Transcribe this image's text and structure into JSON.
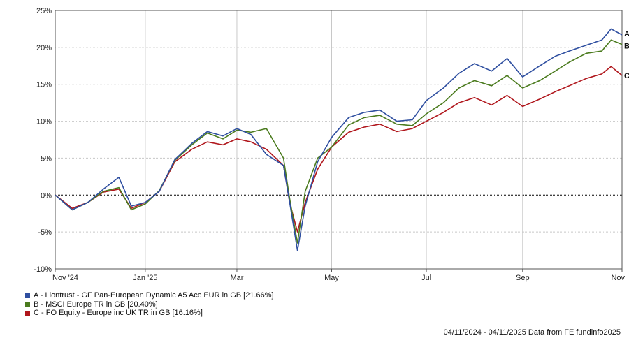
{
  "chart_data": {
    "type": "line",
    "ylim": [
      -10,
      25
    ],
    "y_ticks": [
      -10,
      -5,
      0,
      5,
      10,
      15,
      20,
      25
    ],
    "y_tick_labels": [
      "-10%",
      "-5%",
      "0%",
      "5%",
      "10%",
      "15%",
      "20%",
      "25%"
    ],
    "x_tick_labels": [
      "Nov '24",
      "Jan '25",
      "Mar",
      "May",
      "Jul",
      "Sep",
      "Nov"
    ],
    "x_tick_dates": [
      "2024-11-04",
      "2025-01-01",
      "2025-03-01",
      "2025-05-01",
      "2025-07-01",
      "2025-09-01",
      "2025-11-04"
    ],
    "grid": true,
    "zero_line": true,
    "x_start": "2024-11-04",
    "x_end": "2025-11-04",
    "series": [
      {
        "name": "A - Liontrust - GF Pan-European Dynamic A5 Acc EUR in GB [21.66%]",
        "end_label": "A",
        "color": "#2f4fa0",
        "x": [
          "2024-11-04",
          "2024-11-15",
          "2024-11-25",
          "2024-12-05",
          "2024-12-15",
          "2024-12-23",
          "2025-01-01",
          "2025-01-10",
          "2025-01-20",
          "2025-01-31",
          "2025-02-10",
          "2025-02-20",
          "2025-03-01",
          "2025-03-10",
          "2025-03-20",
          "2025-03-31",
          "2025-04-04",
          "2025-04-09",
          "2025-04-14",
          "2025-04-22",
          "2025-05-01",
          "2025-05-12",
          "2025-05-22",
          "2025-06-01",
          "2025-06-12",
          "2025-06-22",
          "2025-07-01",
          "2025-07-12",
          "2025-07-22",
          "2025-08-01",
          "2025-08-12",
          "2025-08-22",
          "2025-09-01",
          "2025-09-12",
          "2025-09-22",
          "2025-10-01",
          "2025-10-12",
          "2025-10-22",
          "2025-10-28",
          "2025-11-04"
        ],
        "values": [
          0.0,
          -2.0,
          -1.0,
          0.8,
          2.4,
          -1.5,
          -1.0,
          0.5,
          4.8,
          7.0,
          8.6,
          8.0,
          9.0,
          8.2,
          5.5,
          4.0,
          -1.0,
          -7.5,
          -1.5,
          4.5,
          7.8,
          10.5,
          11.2,
          11.5,
          10.0,
          10.2,
          12.8,
          14.5,
          16.5,
          17.8,
          16.8,
          18.5,
          16.0,
          17.5,
          18.8,
          19.5,
          20.3,
          21.0,
          22.5,
          21.7
        ]
      },
      {
        "name": "B - MSCI Europe TR in GB [20.40%]",
        "end_label": "B",
        "color": "#4b7b1e",
        "x": [
          "2024-11-04",
          "2024-11-15",
          "2024-11-25",
          "2024-12-05",
          "2024-12-15",
          "2024-12-23",
          "2025-01-01",
          "2025-01-10",
          "2025-01-20",
          "2025-01-31",
          "2025-02-10",
          "2025-02-20",
          "2025-03-01",
          "2025-03-10",
          "2025-03-20",
          "2025-03-31",
          "2025-04-04",
          "2025-04-09",
          "2025-04-14",
          "2025-04-22",
          "2025-05-01",
          "2025-05-12",
          "2025-05-22",
          "2025-06-01",
          "2025-06-12",
          "2025-06-22",
          "2025-07-01",
          "2025-07-12",
          "2025-07-22",
          "2025-08-01",
          "2025-08-12",
          "2025-08-22",
          "2025-09-01",
          "2025-09-12",
          "2025-09-22",
          "2025-10-01",
          "2025-10-12",
          "2025-10-22",
          "2025-10-28",
          "2025-11-04"
        ],
        "values": [
          0.0,
          -2.0,
          -1.0,
          0.5,
          1.0,
          -2.0,
          -1.2,
          0.6,
          4.7,
          6.8,
          8.4,
          7.6,
          8.8,
          8.5,
          9.0,
          5.0,
          -0.5,
          -6.5,
          0.5,
          5.0,
          6.5,
          9.5,
          10.5,
          10.8,
          9.6,
          9.4,
          11.0,
          12.5,
          14.5,
          15.5,
          14.8,
          16.2,
          14.5,
          15.5,
          16.8,
          18.0,
          19.2,
          19.5,
          21.0,
          20.4
        ]
      },
      {
        "name": "C - FO Equity - Europe inc UK TR in GB [16.16%]",
        "end_label": "C",
        "color": "#b0161c",
        "x": [
          "2024-11-04",
          "2024-11-15",
          "2024-11-25",
          "2024-12-05",
          "2024-12-15",
          "2024-12-23",
          "2025-01-01",
          "2025-01-10",
          "2025-01-20",
          "2025-01-31",
          "2025-02-10",
          "2025-02-20",
          "2025-03-01",
          "2025-03-10",
          "2025-03-20",
          "2025-03-31",
          "2025-04-04",
          "2025-04-09",
          "2025-04-14",
          "2025-04-22",
          "2025-05-01",
          "2025-05-12",
          "2025-05-22",
          "2025-06-01",
          "2025-06-12",
          "2025-06-22",
          "2025-07-01",
          "2025-07-12",
          "2025-07-22",
          "2025-08-01",
          "2025-08-12",
          "2025-08-22",
          "2025-09-01",
          "2025-09-12",
          "2025-09-22",
          "2025-10-01",
          "2025-10-12",
          "2025-10-22",
          "2025-10-28",
          "2025-11-04"
        ],
        "values": [
          0.0,
          -1.8,
          -1.0,
          0.4,
          0.8,
          -1.8,
          -1.0,
          0.5,
          4.5,
          6.2,
          7.2,
          6.8,
          7.6,
          7.2,
          6.2,
          4.0,
          -1.0,
          -5.0,
          -1.0,
          3.5,
          6.5,
          8.5,
          9.2,
          9.6,
          8.6,
          9.0,
          10.0,
          11.2,
          12.5,
          13.2,
          12.2,
          13.5,
          12.0,
          13.0,
          14.0,
          14.8,
          15.8,
          16.4,
          17.4,
          16.2
        ]
      }
    ]
  },
  "footer": {
    "text": "04/11/2024 - 04/11/2025 Data from FE fundinfo2025"
  }
}
